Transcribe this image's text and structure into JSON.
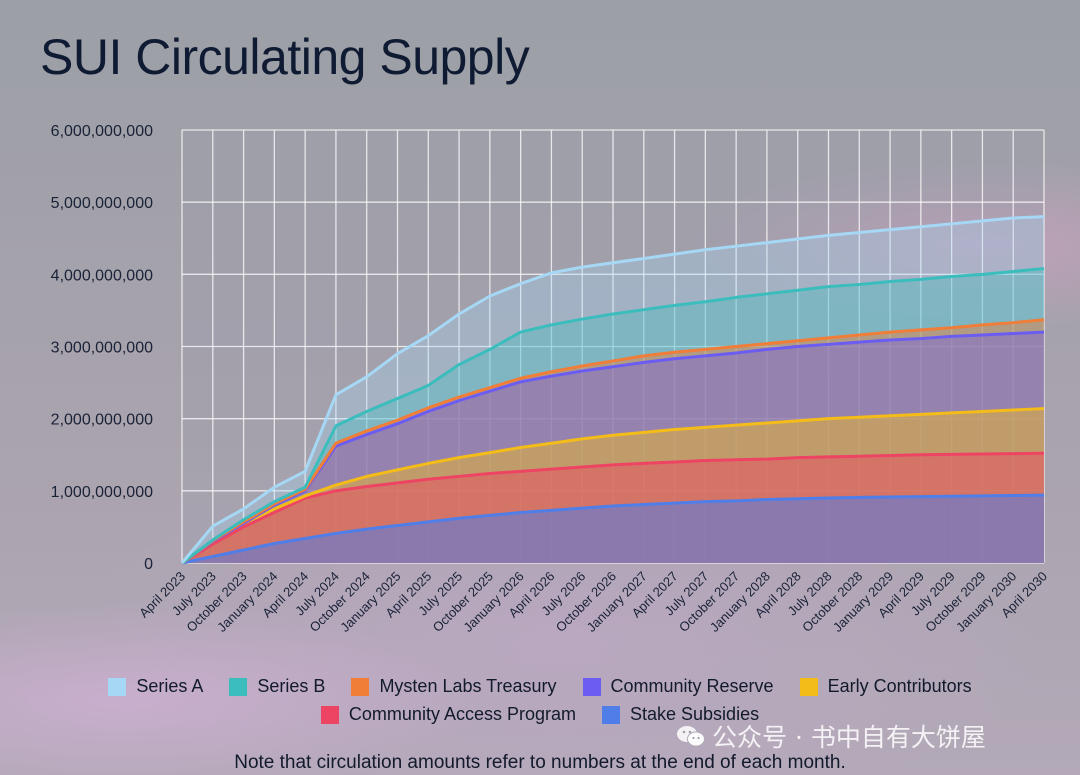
{
  "title": "SUI Circulating Supply",
  "note": "Note that circulation amounts refer to numbers at the end of each month.",
  "watermark": "公众号 · 书中自有大饼屋",
  "chart_data": {
    "type": "area",
    "stacked": true,
    "title": "SUI Circulating Supply",
    "xlabel": "",
    "ylabel": "",
    "ylim": [
      0,
      6000000000
    ],
    "yticks": [
      0,
      1000000000,
      2000000000,
      3000000000,
      4000000000,
      5000000000,
      6000000000
    ],
    "ytick_labels": [
      "0",
      "1,000,000,000",
      "2,000,000,000",
      "3,000,000,000",
      "4,000,000,000",
      "5,000,000,000",
      "6,000,000,000"
    ],
    "grid": true,
    "legend_position": "bottom",
    "categories": [
      "April 2023",
      "July 2023",
      "October 2023",
      "January 2024",
      "April 2024",
      "July 2024",
      "October 2024",
      "January 2025",
      "April 2025",
      "July 2025",
      "October 2025",
      "January 2026",
      "April 2026",
      "July 2026",
      "October 2026",
      "January 2027",
      "April 2027",
      "July 2027",
      "October 2027",
      "January 2028",
      "April 2028",
      "July 2028",
      "October 2028",
      "January 2029",
      "April 2029",
      "July 2029",
      "October 2029",
      "January 2030",
      "April 2030"
    ],
    "series_cumulative": [
      {
        "name": "Stake Subsidies",
        "color": "#4f7ee8",
        "fill": "rgba(79,126,232,0.55)",
        "values": [
          0,
          90000000,
          180000000,
          270000000,
          340000000,
          410000000,
          470000000,
          520000000,
          570000000,
          620000000,
          660000000,
          700000000,
          730000000,
          760000000,
          790000000,
          810000000,
          830000000,
          850000000,
          860000000,
          880000000,
          890000000,
          900000000,
          910000000,
          915000000,
          920000000,
          925000000,
          930000000,
          935000000,
          940000000
        ]
      },
      {
        "name": "Community Access Program",
        "color": "#ee4463",
        "fill": "rgba(238,68,99,0.45)",
        "values": [
          0,
          260000000,
          500000000,
          700000000,
          900000000,
          1000000000,
          1060000000,
          1110000000,
          1160000000,
          1200000000,
          1240000000,
          1270000000,
          1300000000,
          1330000000,
          1360000000,
          1380000000,
          1400000000,
          1420000000,
          1430000000,
          1440000000,
          1460000000,
          1470000000,
          1480000000,
          1490000000,
          1500000000,
          1505000000,
          1510000000,
          1515000000,
          1520000000
        ]
      },
      {
        "name": "Early Contributors",
        "color": "#f4bc18",
        "fill": "rgba(244,188,24,0.45)",
        "values": [
          0,
          300000000,
          550000000,
          750000000,
          930000000,
          1080000000,
          1200000000,
          1290000000,
          1380000000,
          1460000000,
          1530000000,
          1600000000,
          1660000000,
          1720000000,
          1770000000,
          1810000000,
          1850000000,
          1880000000,
          1910000000,
          1940000000,
          1970000000,
          2000000000,
          2020000000,
          2040000000,
          2060000000,
          2080000000,
          2100000000,
          2120000000,
          2140000000
        ]
      },
      {
        "name": "Community Reserve",
        "color": "#6b5cf2",
        "fill": "rgba(107,92,242,0.40)",
        "values": [
          0,
          300000000,
          550000000,
          800000000,
          1000000000,
          1620000000,
          1780000000,
          1930000000,
          2100000000,
          2250000000,
          2380000000,
          2510000000,
          2590000000,
          2660000000,
          2720000000,
          2780000000,
          2830000000,
          2870000000,
          2910000000,
          2960000000,
          3000000000,
          3030000000,
          3060000000,
          3090000000,
          3110000000,
          3140000000,
          3160000000,
          3180000000,
          3200000000
        ]
      },
      {
        "name": "Mysten Labs Treasury",
        "color": "#f07d38",
        "fill": "rgba(240,125,56,0.45)",
        "values": [
          0,
          310000000,
          570000000,
          820000000,
          1020000000,
          1660000000,
          1830000000,
          1980000000,
          2150000000,
          2300000000,
          2430000000,
          2560000000,
          2650000000,
          2730000000,
          2800000000,
          2870000000,
          2920000000,
          2960000000,
          3000000000,
          3040000000,
          3080000000,
          3120000000,
          3160000000,
          3200000000,
          3230000000,
          3260000000,
          3300000000,
          3330000000,
          3370000000
        ]
      },
      {
        "name": "Series B",
        "color": "#3bbdbd",
        "fill": "rgba(59,189,189,0.35)",
        "values": [
          0,
          320000000,
          600000000,
          850000000,
          1050000000,
          1900000000,
          2100000000,
          2280000000,
          2460000000,
          2750000000,
          2960000000,
          3200000000,
          3300000000,
          3380000000,
          3450000000,
          3510000000,
          3570000000,
          3620000000,
          3680000000,
          3730000000,
          3780000000,
          3830000000,
          3860000000,
          3900000000,
          3930000000,
          3970000000,
          4000000000,
          4040000000,
          4080000000
        ]
      },
      {
        "name": "Series A",
        "color": "#a6d8f5",
        "fill": "rgba(166,216,245,0.32)",
        "values": [
          0,
          510000000,
          750000000,
          1050000000,
          1270000000,
          2330000000,
          2580000000,
          2900000000,
          3150000000,
          3450000000,
          3700000000,
          3870000000,
          4020000000,
          4100000000,
          4160000000,
          4220000000,
          4280000000,
          4340000000,
          4390000000,
          4440000000,
          4490000000,
          4540000000,
          4580000000,
          4620000000,
          4660000000,
          4700000000,
          4740000000,
          4780000000,
          4800000000
        ]
      }
    ]
  },
  "legend": {
    "row1": [
      {
        "label": "Series A",
        "color": "#a6d8f5"
      },
      {
        "label": "Series B",
        "color": "#3bbdbd"
      },
      {
        "label": "Mysten Labs Treasury",
        "color": "#f07d38"
      },
      {
        "label": "Community Reserve",
        "color": "#6b5cf2"
      },
      {
        "label": "Early Contributors",
        "color": "#f4bc18"
      }
    ],
    "row2": [
      {
        "label": "Community Access Program",
        "color": "#ee4463"
      },
      {
        "label": "Stake Subsidies",
        "color": "#4f7ee8"
      }
    ]
  }
}
